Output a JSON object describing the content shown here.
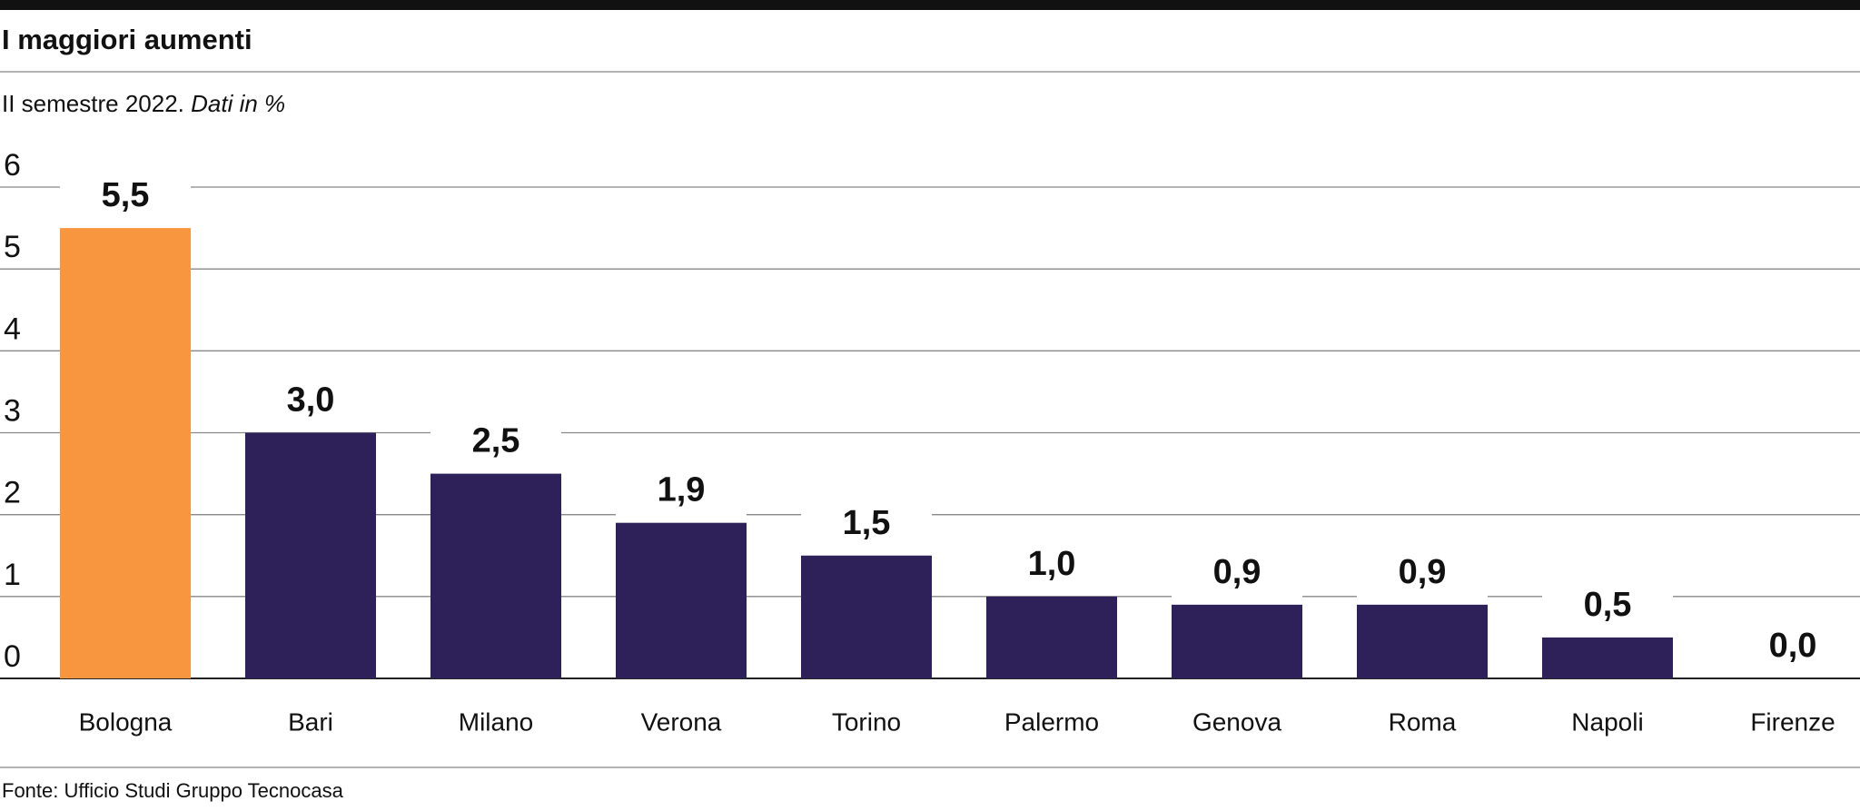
{
  "chart_data": {
    "type": "bar",
    "title": "I maggiori aumenti",
    "subtitle": "II semestre 2022.",
    "subtitle_note": "Dati in %",
    "source": "Fonte: Ufficio Studi Gruppo Tecnocasa",
    "categories": [
      "Bologna",
      "Bari",
      "Milano",
      "Verona",
      "Torino",
      "Palermo",
      "Genova",
      "Roma",
      "Napoli",
      "Firenze"
    ],
    "values": [
      5.5,
      3.0,
      2.5,
      1.9,
      1.5,
      1.0,
      0.9,
      0.9,
      0.5,
      0.0
    ],
    "value_labels": [
      "5,5",
      "3,0",
      "2,5",
      "1,9",
      "1,5",
      "1,0",
      "0,9",
      "0,9",
      "0,5",
      "0,0"
    ],
    "colors": [
      "#f7963e",
      "#2e2159",
      "#2e2159",
      "#2e2159",
      "#2e2159",
      "#2e2159",
      "#2e2159",
      "#2e2159",
      "#2e2159",
      "#2e2159"
    ],
    "ylim": [
      0,
      6
    ],
    "yticks": [
      0,
      1,
      2,
      3,
      4,
      5,
      6
    ],
    "grid": true
  }
}
